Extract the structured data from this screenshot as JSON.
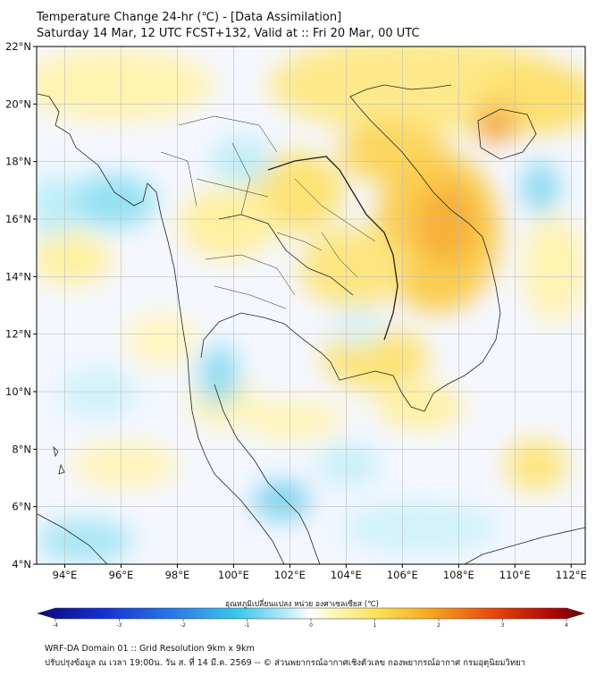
{
  "title": {
    "line1": "Temperature Change 24-hr (℃) - [Data Assimilation]",
    "line2": "Saturday 14 Mar, 12 UTC FCST+132, Valid at :: Fri 20 Mar, 00 UTC"
  },
  "map": {
    "lat_ticks": [
      "22°N",
      "20°N",
      "18°N",
      "16°N",
      "14°N",
      "12°N",
      "10°N",
      "8°N",
      "6°N",
      "4°N"
    ],
    "lon_ticks": [
      "94°E",
      "96°E",
      "98°E",
      "100°E",
      "102°E",
      "104°E",
      "106°E",
      "108°E",
      "110°E",
      "112°E"
    ],
    "lat_range": [
      4,
      22
    ],
    "lon_range": [
      93,
      112.5
    ]
  },
  "colorbar": {
    "label": "อุณหภูมิเปลี่ยนแปลง หน่วย องศาเซลเซียส (℃)",
    "ticks": [
      "-4",
      "-3",
      "-2",
      "-1",
      "0",
      "1",
      "2",
      "3",
      "4"
    ],
    "range": [
      -4,
      4
    ]
  },
  "footer": {
    "line1": "WRF-DA Domain 01 :: Grid Resolution 9km x 9km",
    "line2": "ปรับปรุงข้อมูล ณ เวลา 19:00น. วัน ส. ที่ 14 มี.ค. 2569 -- © ส่วนพยากรณ์อากาศเชิงตัวเลข กองพยากรณ์อากาศ กรมอุตุนิยมวิทยา"
  }
}
